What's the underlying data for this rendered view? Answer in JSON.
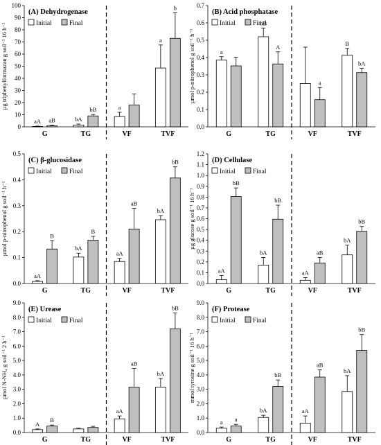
{
  "chart_data": [
    {
      "type": "bar",
      "panel_id": "A",
      "title": "(A) Dehydrogenase",
      "ylabel": "µg triphenylformazan g soil⁻¹ 16 h⁻¹",
      "categories": [
        "G",
        "TG",
        "VF",
        "TVF"
      ],
      "ylim": [
        0,
        100
      ],
      "yticks": [
        "0",
        "10",
        "20",
        "30",
        "40",
        "50",
        "60",
        "70",
        "80",
        "90",
        "100"
      ],
      "series": [
        {
          "name": "Initial",
          "values": [
            0.3,
            1.5,
            8.5,
            48.5
          ],
          "errors": [
            0.3,
            0.8,
            3.5,
            19
          ],
          "labels": [
            "aA",
            "bA",
            "a",
            "a"
          ]
        },
        {
          "name": "Final",
          "values": [
            0.8,
            9,
            18,
            73
          ],
          "errors": [
            0.5,
            1.2,
            9,
            21
          ],
          "labels": [
            "aB",
            "bB",
            "",
            ""
          ]
        }
      ],
      "top_labels": [
        "",
        "",
        "",
        "b"
      ],
      "legend": "top-left"
    },
    {
      "type": "bar",
      "panel_id": "B",
      "title": "(B) Acid phosphatase",
      "ylabel": "µmol p-nitrophenol g soil⁻¹ h⁻¹",
      "categories": [
        "G",
        "TG",
        "VF",
        "TVF"
      ],
      "ylim": [
        0,
        0.7
      ],
      "yticks": [
        "0.0",
        "0.1",
        "0.2",
        "0.3",
        "0.4",
        "0.5",
        "0.6",
        "0.7"
      ],
      "series": [
        {
          "name": "Initial",
          "values": [
            0.385,
            0.52,
            0.25,
            0.413
          ],
          "errors": [
            0.02,
            0.05,
            0.21,
            0.04
          ],
          "labels": [
            "a",
            "bB",
            "",
            "B"
          ]
        },
        {
          "name": "Final",
          "values": [
            0.352,
            0.363,
            0.157,
            0.313
          ],
          "errors": [
            0.05,
            0.07,
            0.07,
            0.025
          ],
          "labels": [
            "",
            "A",
            "a",
            "bA"
          ]
        }
      ],
      "legend": "top-left"
    },
    {
      "type": "bar",
      "panel_id": "C",
      "title": "(C) β-glucosidase",
      "ylabel": "µmol p-nitrophenol g soil⁻¹ h⁻¹",
      "categories": [
        "G",
        "TG",
        "VF",
        "TVF"
      ],
      "ylim": [
        0,
        0.5
      ],
      "yticks": [
        "0.0",
        "0.1",
        "0.2",
        "0.3",
        "0.4",
        "0.5"
      ],
      "series": [
        {
          "name": "Initial",
          "values": [
            0.008,
            0.102,
            0.085,
            0.246
          ],
          "errors": [
            0.003,
            0.015,
            0.012,
            0.016
          ],
          "labels": [
            "aA",
            "bA",
            "aA",
            "bA"
          ]
        },
        {
          "name": "Final",
          "values": [
            0.133,
            0.167,
            0.21,
            0.407
          ],
          "errors": [
            0.032,
            0.015,
            0.08,
            0.043
          ],
          "labels": [
            "B",
            "B",
            "aB",
            "bB"
          ]
        }
      ],
      "legend": "top-left"
    },
    {
      "type": "bar",
      "panel_id": "D",
      "title": "(D) Cellulase",
      "ylabel": "µg glucose g soil⁻¹ 16 h⁻¹",
      "categories": [
        "G",
        "TG",
        "VF",
        "TVF"
      ],
      "ylim": [
        0,
        1.2
      ],
      "yticks": [
        "0.0",
        "0.1",
        "0.2",
        "0.3",
        "0.4",
        "0.5",
        "0.6",
        "0.7",
        "0.8",
        "0.9",
        "1.0",
        "1.1",
        "1.2"
      ],
      "series": [
        {
          "name": "Initial",
          "values": [
            0.035,
            0.17,
            0.03,
            0.265
          ],
          "errors": [
            0.04,
            0.07,
            0.025,
            0.09
          ],
          "labels": [
            "aA",
            "bA",
            "aA",
            "bA"
          ]
        },
        {
          "name": "Final",
          "values": [
            0.805,
            0.595,
            0.19,
            0.483
          ],
          "errors": [
            0.08,
            0.13,
            0.05,
            0.045
          ],
          "labels": [
            "bB",
            "bB",
            "aB",
            "bB"
          ]
        }
      ],
      "legend": "top-left"
    },
    {
      "type": "bar",
      "panel_id": "E",
      "title": "(E) Urease",
      "ylabel": "µmol N-NH₄ g soil⁻¹ 2 h⁻¹",
      "categories": [
        "G",
        "TG",
        "VF",
        "TVF"
      ],
      "ylim": [
        0,
        9
      ],
      "yticks": [
        "0.0",
        "1.0",
        "2.0",
        "3.0",
        "4.0",
        "5.0",
        "6.0",
        "7.0",
        "8.0",
        "9.0"
      ],
      "series": [
        {
          "name": "Initial",
          "values": [
            0.2,
            0.25,
            0.95,
            3.15
          ],
          "errors": [
            0.05,
            0.05,
            0.2,
            0.6
          ],
          "labels": [
            "A",
            "",
            "aA",
            "bA"
          ]
        },
        {
          "name": "Final",
          "values": [
            0.45,
            0.35,
            3.15,
            7.2
          ],
          "errors": [
            0.07,
            0.08,
            1.3,
            1.1
          ],
          "labels": [
            "B",
            "",
            "aB",
            "bB"
          ]
        }
      ],
      "legend": "top-left"
    },
    {
      "type": "bar",
      "panel_id": "F",
      "title": "(F) Protease",
      "ylabel": "mmol tyrosine g soil⁻¹ 16 h⁻¹",
      "categories": [
        "G",
        "TG",
        "VF",
        "TVF"
      ],
      "ylim": [
        0,
        9
      ],
      "yticks": [
        "0.0",
        "1.0",
        "2.0",
        "3.0",
        "4.0",
        "5.0",
        "6.0",
        "7.0",
        "8.0",
        "9.0"
      ],
      "series": [
        {
          "name": "Initial",
          "values": [
            0.3,
            1.05,
            0.65,
            2.85
          ],
          "errors": [
            0.08,
            0.15,
            0.5,
            1.1
          ],
          "labels": [
            "a",
            "bA",
            "aA",
            "bA"
          ]
        },
        {
          "name": "Final",
          "values": [
            0.45,
            3.2,
            3.85,
            5.7
          ],
          "errors": [
            0.12,
            0.45,
            0.5,
            1.1
          ],
          "labels": [
            "a",
            "bB",
            "aB",
            "bB"
          ]
        }
      ],
      "legend": "top-left"
    }
  ],
  "colors": {
    "initial_fill": "#ffffff",
    "final_fill": "#bfbfbf",
    "stroke": "#000000"
  }
}
